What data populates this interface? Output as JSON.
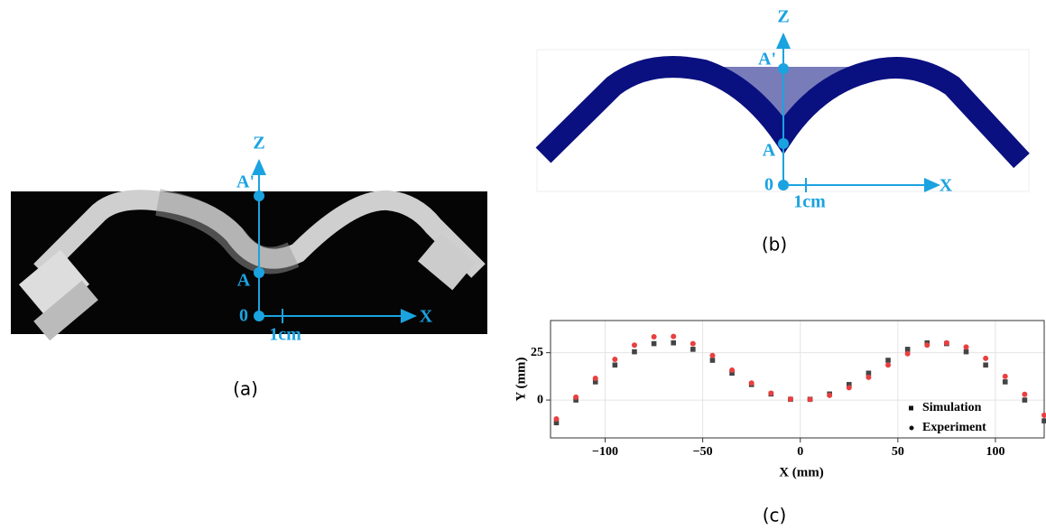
{
  "panel_a": {
    "label": "(a)",
    "annotations": {
      "z": "Z",
      "a_prime": "A'",
      "a": "A",
      "origin": "0",
      "x": "X",
      "scale": "1cm"
    }
  },
  "panel_b": {
    "label": "(b)",
    "annotations": {
      "z": "Z",
      "a_prime": "A'",
      "a": "A",
      "origin": "0",
      "x": "X",
      "scale": "1cm"
    }
  },
  "panel_c": {
    "label": "(c)"
  },
  "chart_data": {
    "type": "scatter",
    "x_label": "X (mm)",
    "y_label": "Y (mm)",
    "xlim": [
      -128,
      125
    ],
    "ylim": [
      -20,
      42
    ],
    "xticks": [
      {
        "value": -100,
        "label": "−100"
      },
      {
        "value": -50,
        "label": "−50"
      },
      0,
      50,
      100
    ],
    "yticks": [
      0,
      25
    ],
    "grid": true,
    "x": [
      -125,
      -115,
      -105,
      -95,
      -85,
      -75,
      -65,
      -55,
      -45,
      -35,
      -25,
      -15,
      -5,
      5,
      15,
      25,
      35,
      45,
      55,
      65,
      75,
      85,
      95,
      105,
      115,
      125
    ],
    "series": [
      {
        "name": "Simulation",
        "color": "#444444",
        "marker": "square",
        "values": [
          -12,
          0,
          9.6,
          18.5,
          25.5,
          29.8,
          30.2,
          26.8,
          21,
          14.2,
          8.2,
          3.2,
          0.4,
          0.4,
          3.2,
          8.2,
          14.2,
          21,
          26.8,
          30.2,
          29.8,
          25.5,
          18.5,
          9.6,
          0,
          -11
        ]
      },
      {
        "name": "Experiment",
        "color": "#e8403f",
        "marker": "circle",
        "values": [
          -10,
          1.5,
          11.5,
          21.5,
          29,
          33.4,
          33.6,
          29.8,
          23.5,
          15.8,
          9,
          3.6,
          0.5,
          0.3,
          2.5,
          6.5,
          12,
          18.5,
          24.5,
          29,
          30.2,
          28,
          22,
          12.5,
          3,
          -8
        ]
      }
    ]
  }
}
